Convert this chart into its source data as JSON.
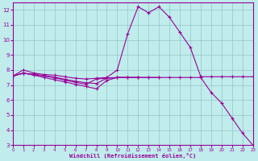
{
  "xlabel": "Windchill (Refroidissement éolien,°C)",
  "bg_color": "#c0ecec",
  "line_color": "#990099",
  "grid_color": "#99cccc",
  "xlim": [
    0,
    23
  ],
  "ylim": [
    3,
    12.5
  ],
  "xticks": [
    0,
    1,
    2,
    3,
    4,
    5,
    6,
    7,
    8,
    9,
    10,
    11,
    12,
    13,
    14,
    15,
    16,
    17,
    18,
    19,
    20,
    21,
    22,
    23
  ],
  "yticks": [
    3,
    4,
    5,
    6,
    7,
    8,
    9,
    10,
    11,
    12
  ],
  "lines": [
    {
      "x": [
        0,
        1,
        2,
        3,
        4,
        5,
        6,
        7,
        8,
        9,
        10,
        11,
        12,
        13,
        14,
        15,
        16,
        17,
        18,
        19,
        20,
        21,
        22,
        23
      ],
      "y": [
        7.6,
        8.0,
        7.8,
        7.7,
        7.65,
        7.55,
        7.45,
        7.4,
        7.45,
        7.5,
        8.0,
        10.4,
        12.2,
        11.8,
        12.2,
        11.5,
        10.5,
        9.5,
        7.55,
        7.55,
        7.55,
        7.55,
        7.55,
        7.55
      ]
    },
    {
      "x": [
        0,
        1,
        2,
        3,
        4,
        5,
        6,
        7,
        8,
        9,
        10,
        11,
        12,
        13,
        14,
        15,
        16,
        17,
        18,
        19,
        20,
        21,
        22,
        23
      ],
      "y": [
        7.6,
        7.8,
        7.65,
        7.5,
        7.35,
        7.2,
        7.05,
        6.9,
        6.75,
        7.3,
        7.5,
        7.5,
        7.5,
        7.5,
        7.5,
        7.5,
        7.5,
        7.5,
        7.5,
        6.5,
        5.8,
        4.8,
        3.8,
        3.0
      ]
    },
    {
      "x": [
        0,
        1,
        2,
        3,
        4,
        5,
        6,
        7,
        8,
        9,
        10,
        11,
        12,
        13,
        14
      ],
      "y": [
        7.6,
        7.78,
        7.72,
        7.62,
        7.52,
        7.38,
        7.25,
        7.15,
        7.1,
        7.45,
        7.5,
        7.5,
        7.5,
        7.5,
        7.5
      ]
    },
    {
      "x": [
        0,
        1,
        2,
        3,
        4,
        5,
        6,
        7,
        8,
        9,
        10,
        11,
        12
      ],
      "y": [
        7.6,
        7.78,
        7.7,
        7.6,
        7.48,
        7.32,
        7.18,
        7.05,
        7.4,
        7.45,
        7.5,
        7.5,
        7.5
      ]
    }
  ]
}
